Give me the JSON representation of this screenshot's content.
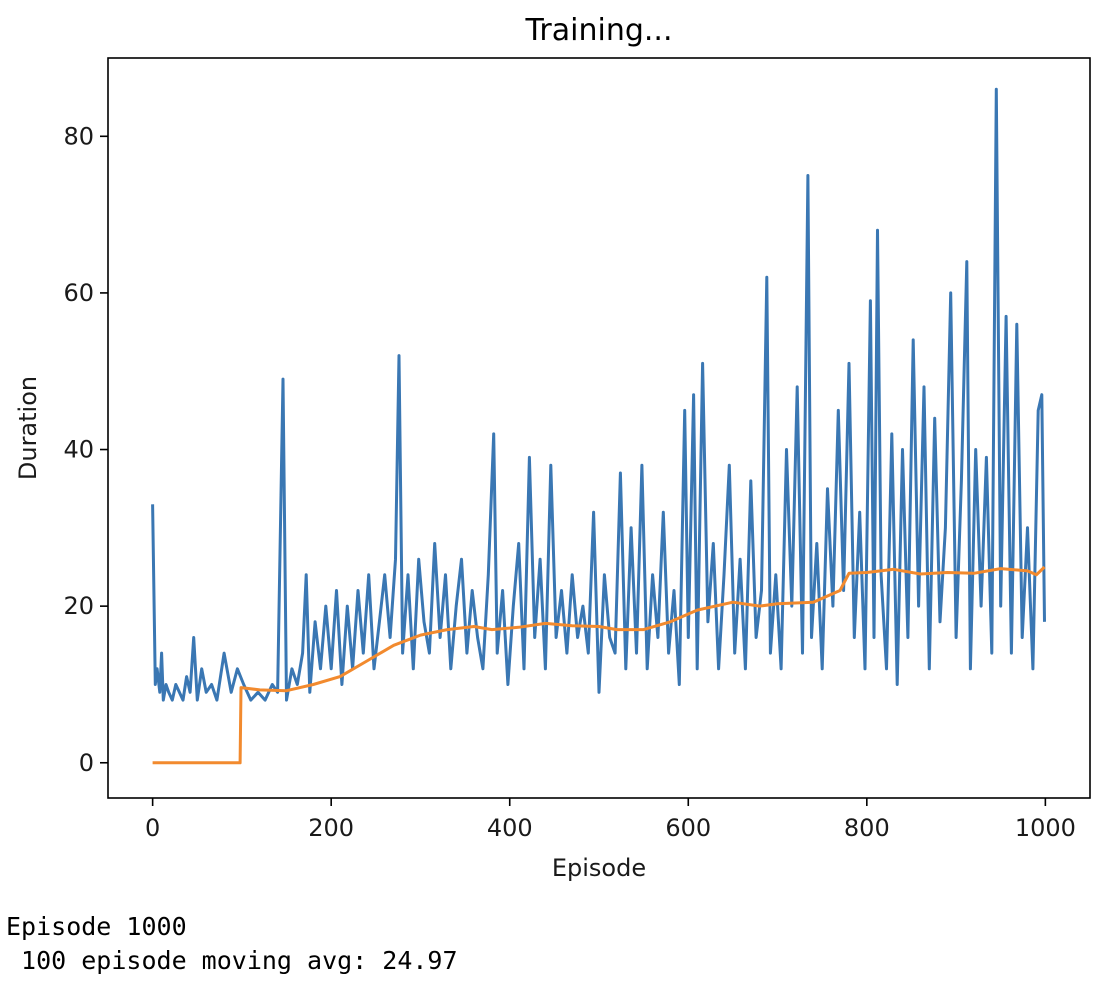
{
  "chart_data": {
    "type": "line",
    "title": "Training...",
    "xlabel": "Episode",
    "ylabel": "Duration",
    "xlim": [
      -50,
      1050
    ],
    "ylim": [
      -4.5,
      90
    ],
    "xticks": [
      0,
      200,
      400,
      600,
      800,
      1000
    ],
    "yticks": [
      0,
      20,
      40,
      60,
      80
    ],
    "grid": false,
    "legend": "none",
    "series": [
      {
        "color": "#3a77b3",
        "points": [
          [
            0,
            33
          ],
          [
            3,
            10
          ],
          [
            5,
            12
          ],
          [
            8,
            9
          ],
          [
            10,
            14
          ],
          [
            12,
            8
          ],
          [
            15,
            10
          ],
          [
            18,
            9
          ],
          [
            22,
            8
          ],
          [
            26,
            10
          ],
          [
            30,
            9
          ],
          [
            34,
            8
          ],
          [
            38,
            11
          ],
          [
            42,
            9
          ],
          [
            46,
            16
          ],
          [
            50,
            8
          ],
          [
            55,
            12
          ],
          [
            60,
            9
          ],
          [
            66,
            10
          ],
          [
            72,
            8
          ],
          [
            80,
            14
          ],
          [
            88,
            9
          ],
          [
            95,
            12
          ],
          [
            102,
            10
          ],
          [
            110,
            8
          ],
          [
            118,
            9
          ],
          [
            126,
            8
          ],
          [
            134,
            10
          ],
          [
            140,
            9
          ],
          [
            146,
            49
          ],
          [
            150,
            8
          ],
          [
            156,
            12
          ],
          [
            162,
            10
          ],
          [
            168,
            14
          ],
          [
            172,
            24
          ],
          [
            176,
            9
          ],
          [
            182,
            18
          ],
          [
            188,
            12
          ],
          [
            194,
            20
          ],
          [
            200,
            12
          ],
          [
            206,
            22
          ],
          [
            212,
            10
          ],
          [
            218,
            20
          ],
          [
            224,
            12
          ],
          [
            230,
            22
          ],
          [
            236,
            14
          ],
          [
            242,
            24
          ],
          [
            248,
            12
          ],
          [
            254,
            18
          ],
          [
            260,
            24
          ],
          [
            266,
            16
          ],
          [
            272,
            26
          ],
          [
            276,
            52
          ],
          [
            280,
            14
          ],
          [
            286,
            24
          ],
          [
            292,
            12
          ],
          [
            298,
            26
          ],
          [
            304,
            18
          ],
          [
            310,
            14
          ],
          [
            316,
            28
          ],
          [
            322,
            16
          ],
          [
            328,
            24
          ],
          [
            334,
            12
          ],
          [
            340,
            20
          ],
          [
            346,
            26
          ],
          [
            352,
            14
          ],
          [
            358,
            22
          ],
          [
            364,
            16
          ],
          [
            370,
            12
          ],
          [
            376,
            24
          ],
          [
            382,
            42
          ],
          [
            386,
            14
          ],
          [
            392,
            22
          ],
          [
            398,
            10
          ],
          [
            404,
            20
          ],
          [
            410,
            28
          ],
          [
            416,
            12
          ],
          [
            422,
            39
          ],
          [
            428,
            16
          ],
          [
            434,
            26
          ],
          [
            440,
            12
          ],
          [
            446,
            38
          ],
          [
            452,
            16
          ],
          [
            458,
            22
          ],
          [
            464,
            14
          ],
          [
            470,
            24
          ],
          [
            476,
            16
          ],
          [
            482,
            20
          ],
          [
            488,
            14
          ],
          [
            494,
            32
          ],
          [
            500,
            9
          ],
          [
            506,
            24
          ],
          [
            512,
            16
          ],
          [
            518,
            14
          ],
          [
            524,
            37
          ],
          [
            530,
            12
          ],
          [
            536,
            30
          ],
          [
            542,
            14
          ],
          [
            548,
            38
          ],
          [
            554,
            12
          ],
          [
            560,
            24
          ],
          [
            566,
            16
          ],
          [
            572,
            32
          ],
          [
            578,
            14
          ],
          [
            584,
            22
          ],
          [
            590,
            10
          ],
          [
            596,
            45
          ],
          [
            600,
            16
          ],
          [
            606,
            47
          ],
          [
            610,
            12
          ],
          [
            616,
            51
          ],
          [
            622,
            18
          ],
          [
            628,
            28
          ],
          [
            634,
            12
          ],
          [
            640,
            24
          ],
          [
            646,
            38
          ],
          [
            652,
            14
          ],
          [
            658,
            26
          ],
          [
            664,
            12
          ],
          [
            670,
            36
          ],
          [
            676,
            16
          ],
          [
            682,
            22
          ],
          [
            688,
            62
          ],
          [
            692,
            14
          ],
          [
            698,
            24
          ],
          [
            704,
            12
          ],
          [
            710,
            40
          ],
          [
            716,
            20
          ],
          [
            722,
            48
          ],
          [
            728,
            14
          ],
          [
            734,
            75
          ],
          [
            738,
            16
          ],
          [
            744,
            28
          ],
          [
            750,
            12
          ],
          [
            756,
            35
          ],
          [
            762,
            20
          ],
          [
            768,
            45
          ],
          [
            774,
            22
          ],
          [
            780,
            51
          ],
          [
            786,
            16
          ],
          [
            792,
            32
          ],
          [
            798,
            12
          ],
          [
            804,
            59
          ],
          [
            808,
            16
          ],
          [
            812,
            68
          ],
          [
            816,
            24
          ],
          [
            822,
            12
          ],
          [
            828,
            42
          ],
          [
            834,
            10
          ],
          [
            840,
            40
          ],
          [
            846,
            16
          ],
          [
            852,
            54
          ],
          [
            858,
            20
          ],
          [
            864,
            48
          ],
          [
            870,
            12
          ],
          [
            876,
            44
          ],
          [
            882,
            18
          ],
          [
            888,
            30
          ],
          [
            894,
            60
          ],
          [
            900,
            16
          ],
          [
            906,
            36
          ],
          [
            912,
            64
          ],
          [
            916,
            12
          ],
          [
            922,
            40
          ],
          [
            928,
            20
          ],
          [
            934,
            39
          ],
          [
            940,
            14
          ],
          [
            945,
            86
          ],
          [
            950,
            20
          ],
          [
            956,
            57
          ],
          [
            962,
            14
          ],
          [
            968,
            56
          ],
          [
            974,
            16
          ],
          [
            980,
            30
          ],
          [
            986,
            12
          ],
          [
            992,
            45
          ],
          [
            996,
            47
          ],
          [
            999,
            18
          ]
        ]
      },
      {
        "color": "#f28a2e",
        "points": [
          [
            0,
            0
          ],
          [
            98,
            0
          ],
          [
            99,
            9.6
          ],
          [
            120,
            9.3
          ],
          [
            150,
            9.2
          ],
          [
            180,
            10
          ],
          [
            210,
            11
          ],
          [
            240,
            13
          ],
          [
            270,
            15
          ],
          [
            300,
            16.3
          ],
          [
            330,
            17
          ],
          [
            360,
            17.4
          ],
          [
            380,
            17
          ],
          [
            410,
            17.3
          ],
          [
            440,
            17.8
          ],
          [
            470,
            17.5
          ],
          [
            500,
            17.4
          ],
          [
            520,
            17
          ],
          [
            550,
            17
          ],
          [
            580,
            18
          ],
          [
            610,
            19.5
          ],
          [
            650,
            20.5
          ],
          [
            680,
            20
          ],
          [
            700,
            20.3
          ],
          [
            740,
            20.5
          ],
          [
            770,
            22
          ],
          [
            780,
            24.2
          ],
          [
            800,
            24.3
          ],
          [
            830,
            24.7
          ],
          [
            860,
            24.1
          ],
          [
            890,
            24.3
          ],
          [
            920,
            24.2
          ],
          [
            950,
            24.8
          ],
          [
            980,
            24.5
          ],
          [
            990,
            24
          ],
          [
            999,
            25
          ]
        ]
      }
    ]
  },
  "console": {
    "line1": "Episode 1000",
    "line2": " 100 episode moving avg: 24.97"
  }
}
